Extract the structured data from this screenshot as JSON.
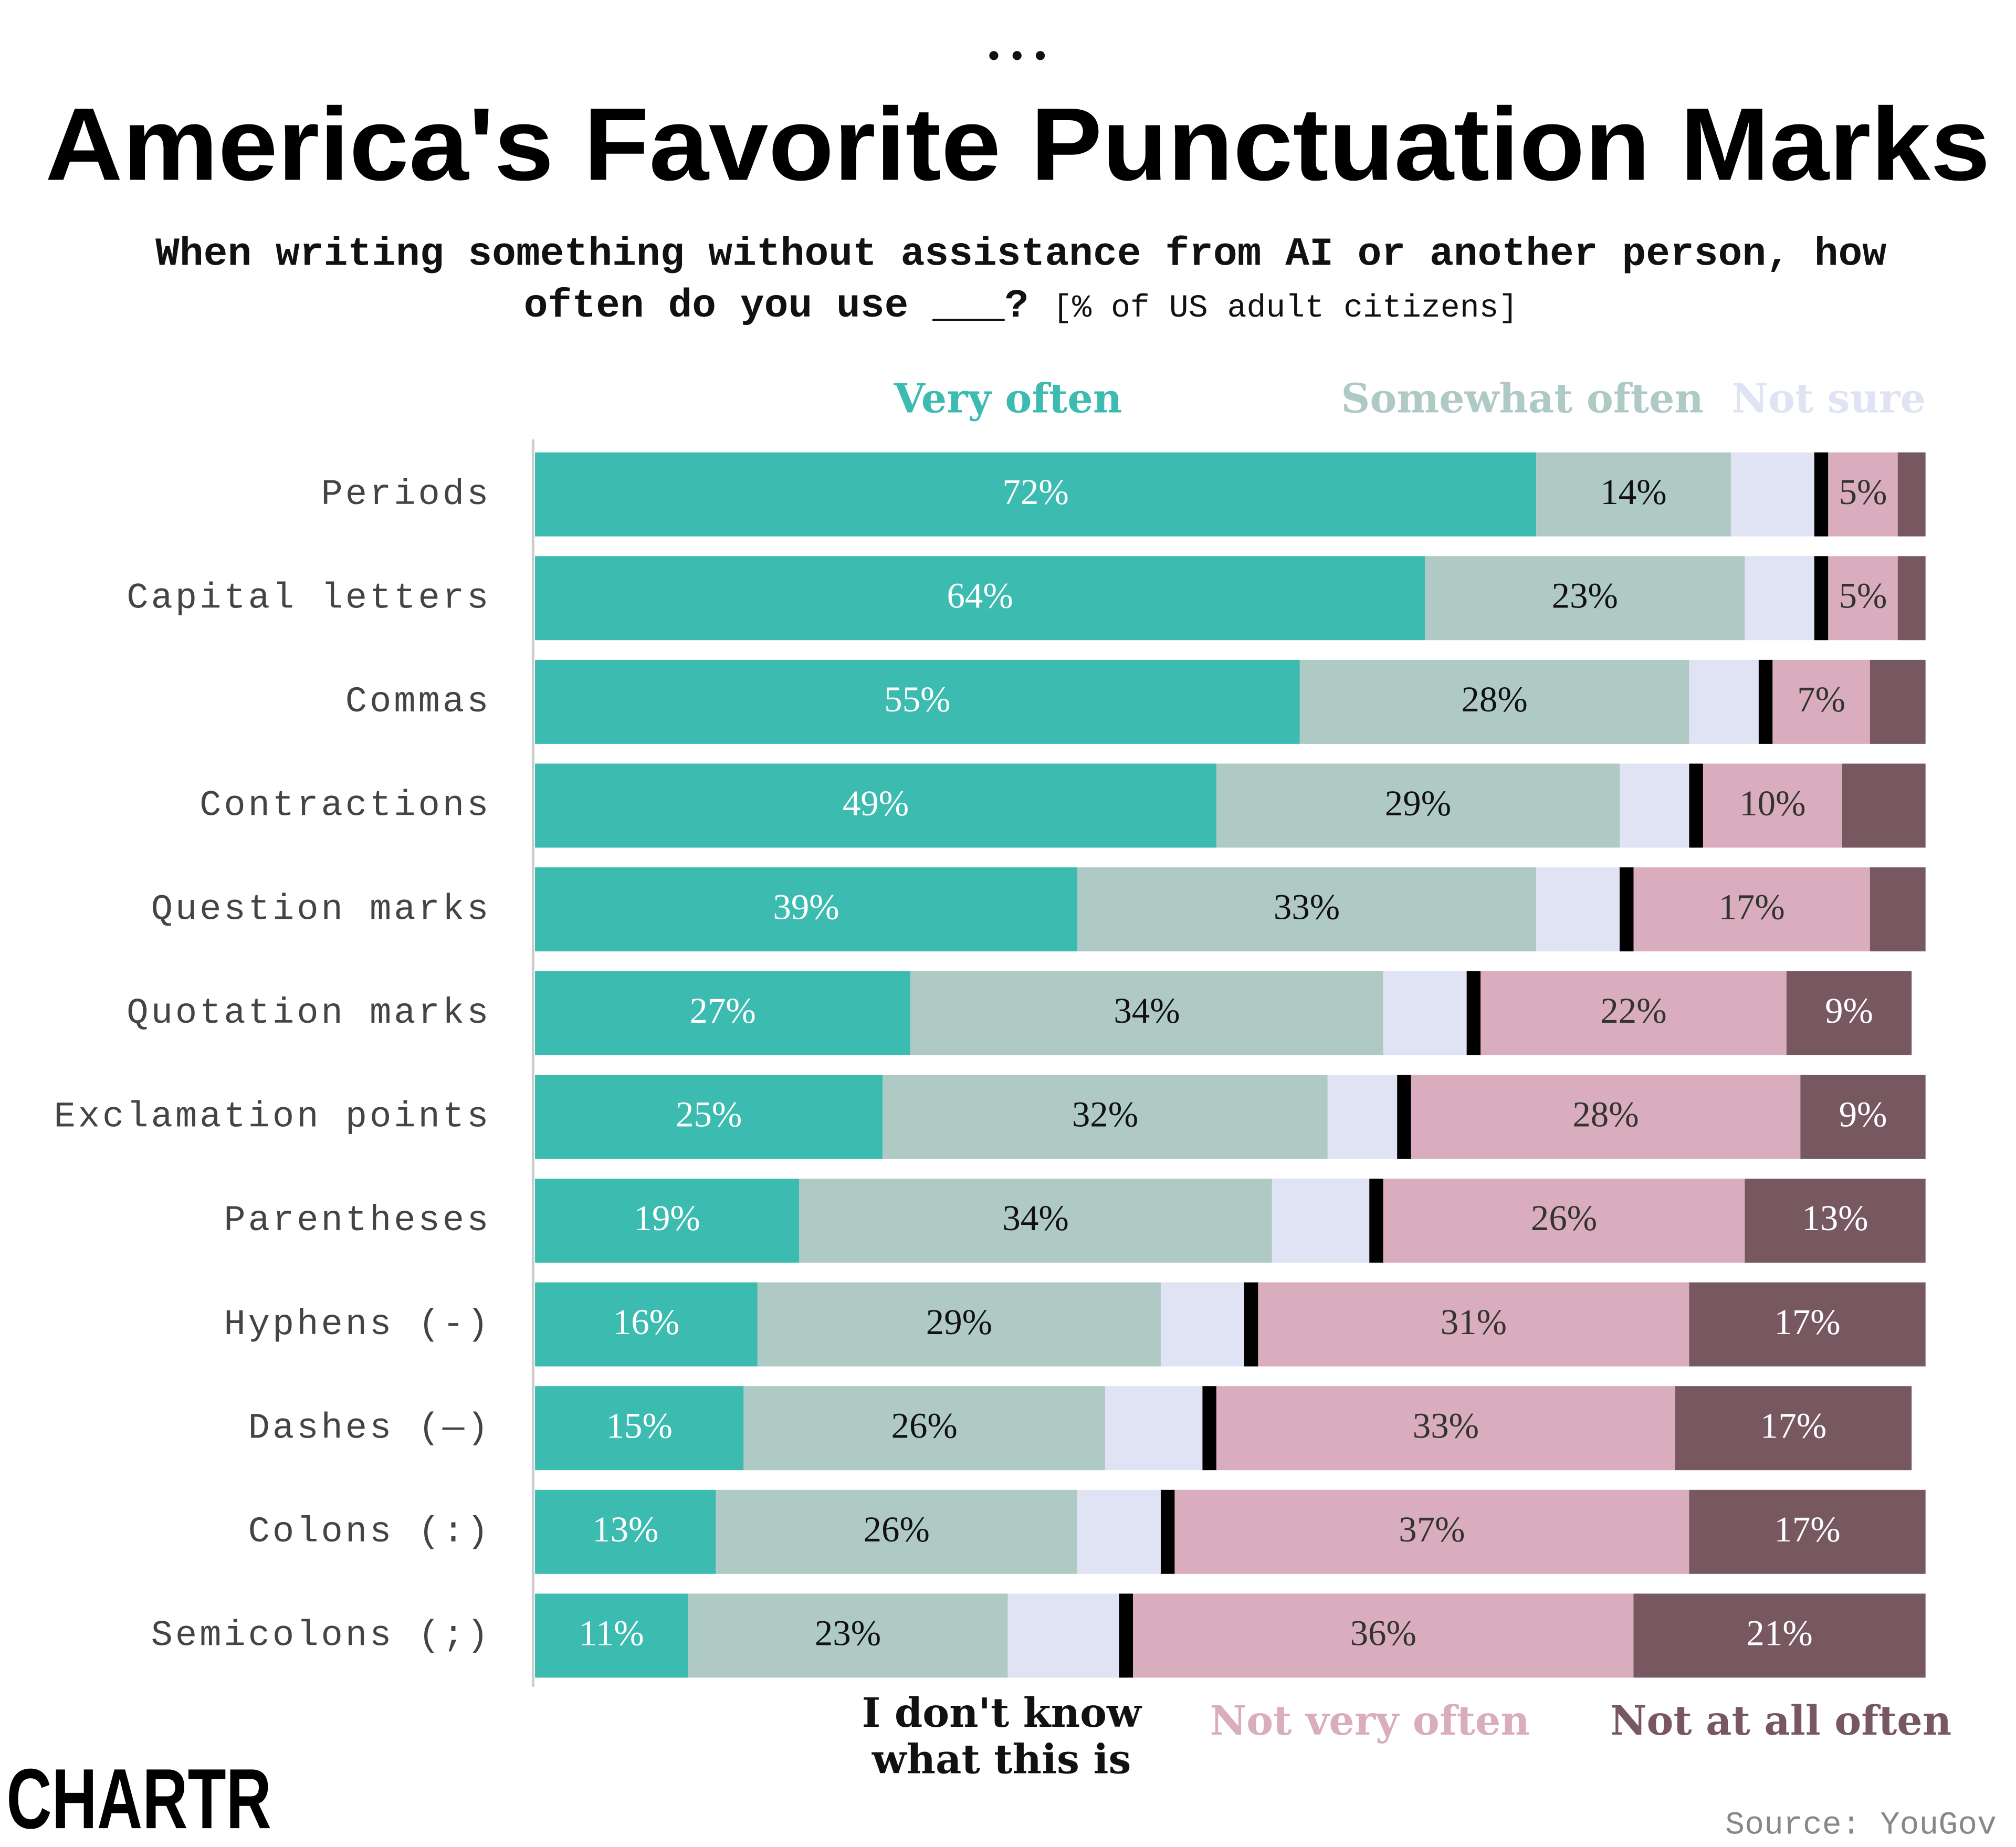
{
  "chart_data": {
    "type": "stacked-bar-horizontal",
    "title": "America's Favorite Punctuation Marks",
    "subtitle": "When writing something without assistance from AI or another person, how often do you use ___?",
    "subtitle_unit": "[% of US adult citizens]",
    "source": "Source: YouGov",
    "logo": "CHARTR",
    "categories": [
      "Periods",
      "Capital letters",
      "Commas",
      "Contractions",
      "Question marks",
      "Quotation marks",
      "Exclamation points",
      "Parentheses",
      "Hyphens (-)",
      "Dashes (—)",
      "Colons (:)",
      "Semicolons (;)"
    ],
    "xlim": [
      0,
      100
    ],
    "series": [
      {
        "name": "Very often",
        "color": "#3cbbb1",
        "values": [
          72,
          64,
          55,
          49,
          39,
          27,
          25,
          19,
          16,
          15,
          13,
          11
        ],
        "value_labels": [
          "72%",
          "64%",
          "55%",
          "49%",
          "39%",
          "27%",
          "25%",
          "19%",
          "16%",
          "15%",
          "13%",
          "11%"
        ]
      },
      {
        "name": "Somewhat often",
        "color": "#afc9c5",
        "values": [
          14,
          23,
          28,
          29,
          33,
          34,
          32,
          34,
          29,
          26,
          26,
          23
        ],
        "value_labels": [
          "14%",
          "23%",
          "28%",
          "29%",
          "33%",
          "34%",
          "32%",
          "34%",
          "29%",
          "26%",
          "26%",
          "23%"
        ]
      },
      {
        "name": "Not sure",
        "color": "#dfe3f4",
        "values": [
          6,
          5,
          5,
          5,
          6,
          6,
          5,
          7,
          6,
          7,
          6,
          8
        ]
      },
      {
        "name": "I don't know what this is",
        "color": "#000000",
        "values": [
          1,
          1,
          1,
          1,
          1,
          1,
          1,
          1,
          1,
          1,
          1,
          1
        ]
      },
      {
        "name": "Not very often",
        "color": "#d9adbd",
        "values": [
          5,
          5,
          7,
          10,
          17,
          22,
          28,
          26,
          31,
          33,
          37,
          36
        ],
        "value_labels": [
          "5%",
          "5%",
          "7%",
          "10%",
          "17%",
          "22%",
          "28%",
          "26%",
          "31%",
          "33%",
          "37%",
          "36%"
        ]
      },
      {
        "name": "Not at all often",
        "color": "#775860",
        "values": [
          2,
          2,
          4,
          6,
          4,
          9,
          9,
          13,
          17,
          17,
          17,
          21
        ],
        "value_labels": [
          null,
          null,
          null,
          null,
          null,
          "9%",
          "9%",
          "13%",
          "17%",
          "17%",
          "17%",
          "21%"
        ]
      }
    ]
  }
}
